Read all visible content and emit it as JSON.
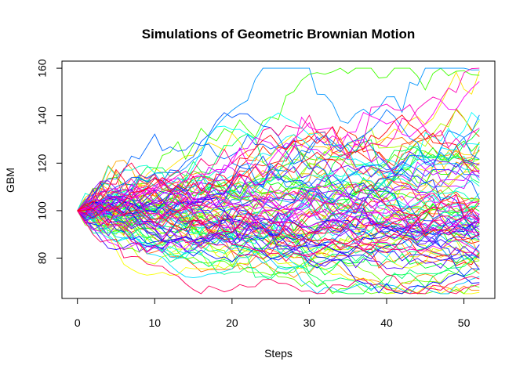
{
  "chart_data": {
    "type": "line",
    "title": "Simulations of Geometric Brownian Motion",
    "xlabel": "Steps",
    "ylabel": "GBM",
    "xlim": [
      -2,
      54
    ],
    "ylim": [
      63,
      163
    ],
    "x_ticks": [
      0,
      10,
      20,
      30,
      40,
      50
    ],
    "y_ticks": [
      80,
      100,
      120,
      140,
      160
    ],
    "n_steps": 52,
    "start_value": 100,
    "n_paths": 100,
    "grid": false,
    "legend": "none",
    "palette": "rainbow",
    "path_endpoint_range": [
      65,
      160
    ]
  }
}
